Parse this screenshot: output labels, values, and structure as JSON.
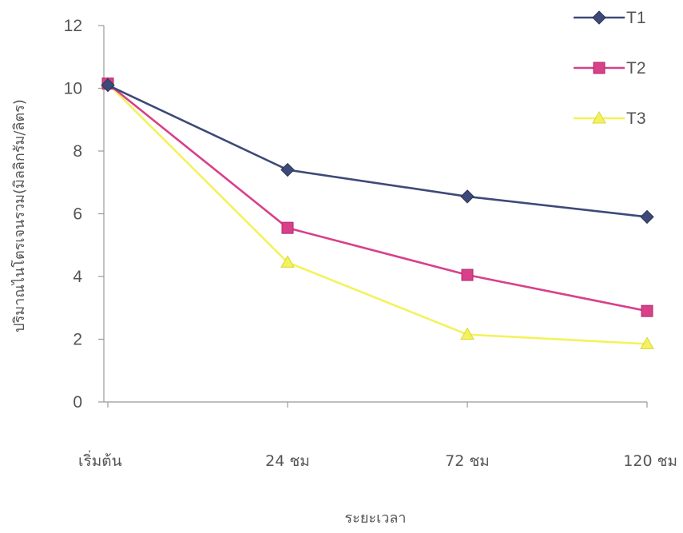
{
  "chart_data": {
    "type": "line",
    "categories": [
      "เริ่มต้น",
      "24 ชม",
      "72 ชม",
      "120 ชม"
    ],
    "series": [
      {
        "name": "T1",
        "values": [
          10.1,
          7.4,
          6.55,
          5.9
        ],
        "color": "#3d4a78",
        "marker": "diamond"
      },
      {
        "name": "T2",
        "values": [
          10.15,
          5.55,
          4.05,
          2.9
        ],
        "color": "#d8408a",
        "marker": "square"
      },
      {
        "name": "T3",
        "values": [
          10.15,
          4.45,
          2.15,
          1.85
        ],
        "color": "#f4f25a",
        "marker": "triangle"
      }
    ],
    "title": "",
    "xlabel": "ระยะเวลา",
    "ylabel": "ปริมาณไนโตรเจนรวม(มิลลิกรัม/ลิตร)",
    "ylim": [
      0,
      12
    ],
    "yticks": [
      "0",
      "2",
      "4",
      "6",
      "8",
      "10",
      "12"
    ],
    "grid": false,
    "legend_position": "top-right"
  }
}
